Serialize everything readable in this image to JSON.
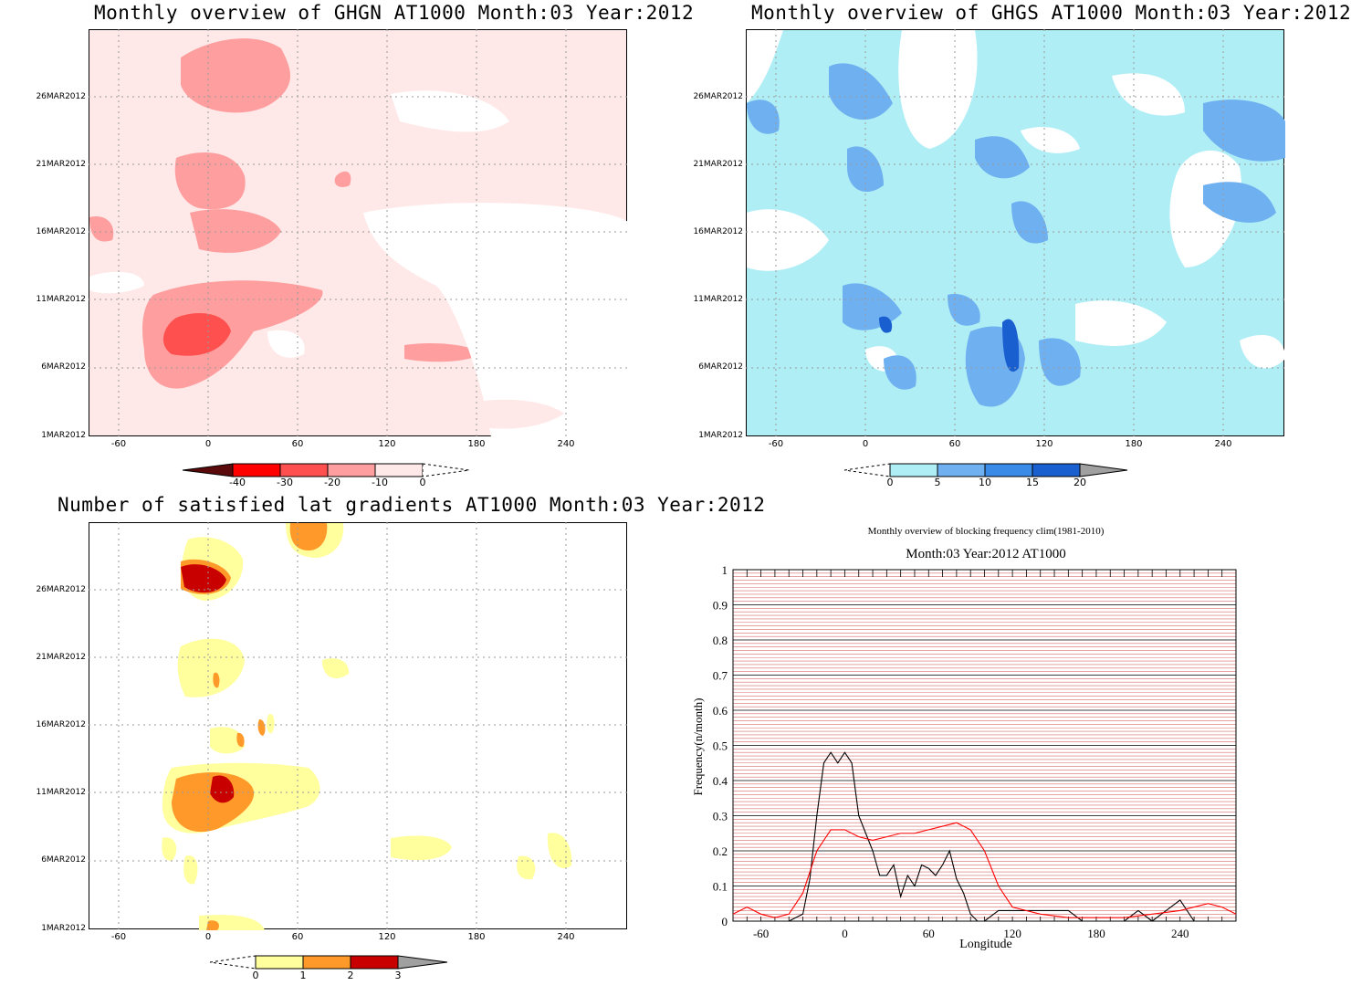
{
  "panels": {
    "ghgn": {
      "title": "Monthly overview of GHGN AT1000 Month:03 Year:2012",
      "y_ticks": [
        "26MAR2012",
        "21MAR2012",
        "16MAR2012",
        "11MAR2012",
        "6MAR2012",
        "1MAR2012"
      ],
      "x_ticks": [
        "-60",
        "0",
        "60",
        "120",
        "180",
        "240"
      ],
      "colorbar": {
        "labels": [
          "-40",
          "-30",
          "-20",
          "-10",
          "0"
        ],
        "colors": [
          "#5a0a0a",
          "#ff0000",
          "#ff5050",
          "#ff9e9e",
          "#ffe8e8"
        ]
      }
    },
    "ghgs": {
      "title": "Monthly overview of GHGS AT1000 Month:03 Year:2012",
      "y_ticks": [
        "26MAR2012",
        "21MAR2012",
        "16MAR2012",
        "11MAR2012",
        "6MAR2012",
        "1MAR2012"
      ],
      "x_ticks": [
        "-60",
        "0",
        "60",
        "120",
        "180",
        "240"
      ],
      "colorbar": {
        "labels": [
          "0",
          "5",
          "10",
          "15",
          "20"
        ],
        "colors": [
          "#b0eef6",
          "#6fb0f0",
          "#3a8ae8",
          "#1a5fd0",
          "#a0a0a0"
        ]
      }
    },
    "lat_grad": {
      "title": "Number of satisfied lat gradients AT1000 Month:03 Year:2012",
      "y_ticks": [
        "26MAR2012",
        "21MAR2012",
        "16MAR2012",
        "11MAR2012",
        "6MAR2012",
        "1MAR2012"
      ],
      "x_ticks": [
        "-60",
        "0",
        "60",
        "120",
        "180",
        "240"
      ],
      "colorbar": {
        "labels": [
          "0",
          "1",
          "2",
          "3"
        ],
        "colors": [
          "#ffff9e",
          "#ff9a2a",
          "#c80000",
          "#a0a0a0"
        ]
      }
    },
    "blocking": {
      "title": "Monthly overview of blocking frequency clim(1981-2010)",
      "subtitle": "Month:03 Year:2012  AT1000",
      "ylabel": "Frequency(n/month)",
      "xlabel": "Longitude",
      "y_ticks": [
        "0",
        "0.1",
        "0.2",
        "0.3",
        "0.4",
        "0.5",
        "0.6",
        "0.7",
        "0.8",
        "0.9",
        "1"
      ],
      "x_ticks": [
        "-60",
        "0",
        "60",
        "120",
        "180",
        "240"
      ]
    }
  },
  "chart_data": [
    {
      "type": "heatmap",
      "title": "Monthly overview of GHGN AT1000 Month:03 Year:2012",
      "xlim": [
        -80,
        280
      ],
      "ylabel_ticks": [
        "1MAR2012",
        "6MAR2012",
        "11MAR2012",
        "16MAR2012",
        "21MAR2012",
        "26MAR2012"
      ],
      "levels": [
        -40,
        -30,
        -20,
        -10,
        0
      ]
    },
    {
      "type": "heatmap",
      "title": "Monthly overview of GHGS AT1000 Month:03 Year:2012",
      "xlim": [
        -80,
        280
      ],
      "levels": [
        0,
        5,
        10,
        15,
        20
      ]
    },
    {
      "type": "heatmap",
      "title": "Number of satisfied lat gradients AT1000 Month:03 Year:2012",
      "xlim": [
        -80,
        280
      ],
      "levels": [
        0,
        1,
        2,
        3
      ]
    },
    {
      "type": "line",
      "title": "Monthly overview of blocking frequency clim(1981-2010)",
      "subtitle": "Month:03 Year:2012  AT1000",
      "xlabel": "Longitude",
      "ylabel": "Frequency(n/month)",
      "xlim": [
        -80,
        280
      ],
      "ylim": [
        0,
        1
      ],
      "series": [
        {
          "color": "#000000",
          "x": [
            -80,
            -40,
            -30,
            -25,
            -20,
            -15,
            -10,
            -5,
            0,
            5,
            10,
            15,
            20,
            25,
            30,
            35,
            40,
            45,
            50,
            55,
            60,
            65,
            70,
            75,
            80,
            85,
            90,
            95,
            100,
            110,
            120,
            160,
            170,
            200,
            210,
            220,
            230,
            240,
            250,
            260,
            270,
            280
          ],
          "y": [
            0,
            0,
            0.02,
            0.12,
            0.3,
            0.45,
            0.48,
            0.45,
            0.48,
            0.45,
            0.3,
            0.25,
            0.2,
            0.13,
            0.13,
            0.16,
            0.07,
            0.13,
            0.1,
            0.16,
            0.15,
            0.13,
            0.16,
            0.2,
            0.12,
            0.08,
            0.02,
            0,
            0,
            0.03,
            0.03,
            0.03,
            0,
            0,
            0.03,
            0,
            0.03,
            0.06,
            0,
            0,
            0,
            0
          ]
        },
        {
          "color": "#ff0000",
          "x": [
            -80,
            -70,
            -60,
            -50,
            -40,
            -30,
            -20,
            -10,
            0,
            10,
            20,
            30,
            40,
            50,
            60,
            70,
            80,
            90,
            100,
            110,
            120,
            140,
            160,
            180,
            200,
            220,
            240,
            260,
            270,
            280
          ],
          "y": [
            0.02,
            0.04,
            0.02,
            0.01,
            0.02,
            0.08,
            0.2,
            0.26,
            0.26,
            0.24,
            0.23,
            0.24,
            0.25,
            0.25,
            0.26,
            0.27,
            0.28,
            0.26,
            0.2,
            0.1,
            0.04,
            0.02,
            0.01,
            0.01,
            0.01,
            0.02,
            0.03,
            0.05,
            0.04,
            0.02
          ]
        }
      ]
    }
  ]
}
